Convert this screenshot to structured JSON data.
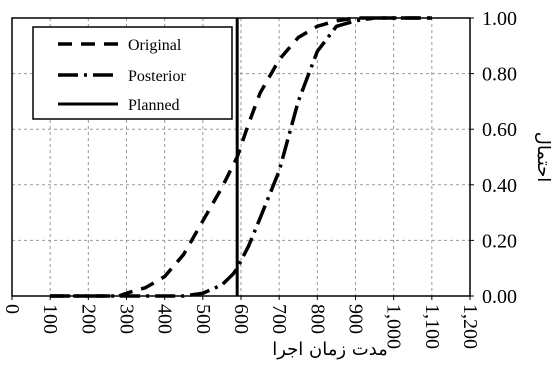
{
  "chart_data": {
    "type": "line",
    "title": "",
    "xlabel": "مدت زمان اجرا",
    "ylabel": "احتمال",
    "xlim": [
      0,
      1200
    ],
    "ylim": [
      0,
      1
    ],
    "x_ticks": [
      0,
      100,
      200,
      300,
      400,
      500,
      600,
      700,
      800,
      900,
      1000,
      1100,
      1200
    ],
    "x_tick_labels": [
      "0",
      "100",
      "200",
      "300",
      "400",
      "500",
      "600",
      "700",
      "800",
      "900",
      "1,000",
      "1,100",
      "1,200"
    ],
    "y_ticks": [
      0,
      0.2,
      0.4,
      0.6,
      0.8,
      1.0
    ],
    "y_tick_labels": [
      "0.00",
      "0.20",
      "0.40",
      "0.60",
      "0.80",
      "1.00"
    ],
    "grid": true,
    "legend_position": "top-left",
    "vertical_line_x": 590,
    "series": [
      {
        "name": "Original",
        "style": "dashed",
        "x": [
          100,
          200,
          280,
          300,
          350,
          400,
          450,
          500,
          550,
          590,
          620,
          650,
          700,
          750,
          800,
          850,
          900,
          950,
          1000,
          1050,
          1100
        ],
        "y": [
          0.0,
          0.0,
          0.0,
          0.01,
          0.03,
          0.07,
          0.15,
          0.27,
          0.39,
          0.5,
          0.62,
          0.73,
          0.85,
          0.93,
          0.97,
          0.99,
          1.0,
          1.0,
          1.0,
          1.0,
          1.0
        ]
      },
      {
        "name": "Posterior",
        "style": "dashdot",
        "x": [
          100,
          200,
          300,
          400,
          450,
          500,
          550,
          580,
          590,
          620,
          650,
          700,
          750,
          800,
          850,
          900,
          950,
          1000,
          1100
        ],
        "y": [
          0.0,
          0.0,
          0.0,
          0.0,
          0.0,
          0.01,
          0.04,
          0.08,
          0.1,
          0.18,
          0.28,
          0.45,
          0.7,
          0.88,
          0.97,
          0.99,
          1.0,
          1.0,
          1.0
        ]
      },
      {
        "name": "Planned",
        "style": "solid"
      }
    ]
  }
}
